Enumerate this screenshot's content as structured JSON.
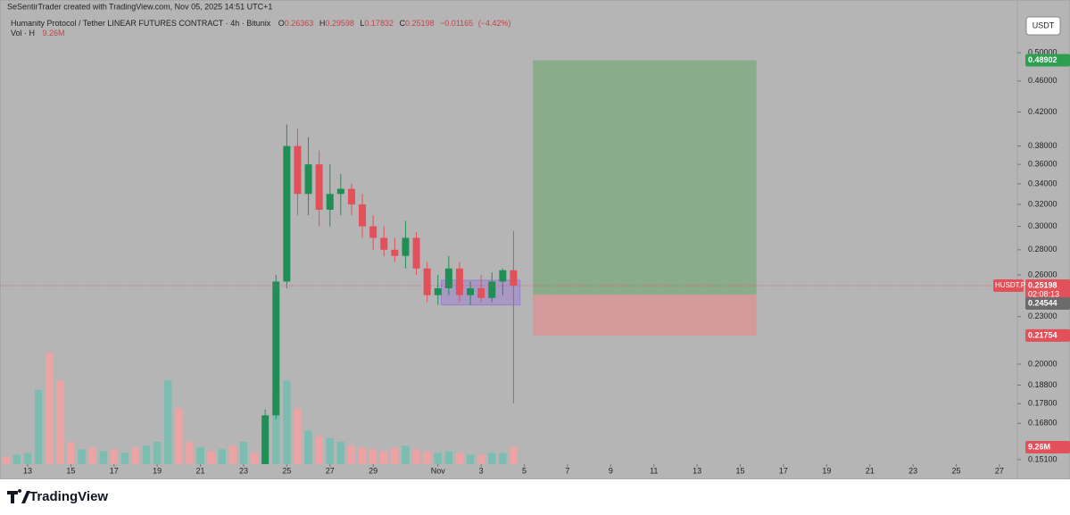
{
  "header": {
    "attribution": "SeSentirTrader created with TradingView.com, Nov 05, 2025 14:51 UTC+1",
    "symbol": "Humanity Protocol / Tether LINEAR FUTURES CONTRACT · 4h · Bitunix",
    "o_label": "O",
    "open": 0.26363,
    "h_label": "H",
    "high": 0.29598,
    "l_label": "L",
    "low": 0.17832,
    "c_label": "C",
    "close": 0.25198,
    "change": "−0.01165",
    "change_pct": "(−4.42%)",
    "vol_label": "Vol · H",
    "vol_value": "9.26M",
    "currency": "USDT",
    "ticker": "HUSDT.P",
    "countdown": "02:08:13"
  },
  "footer": {
    "brand": "TradingView"
  },
  "chart_data": {
    "type": "candlestick",
    "log_scale": true,
    "grid": false,
    "up_color": "#1f8f55",
    "down_color": "#e2505a",
    "x": [
      12,
      12.5,
      13,
      13.5,
      14,
      14.5,
      15,
      15.5,
      16,
      16.5,
      17,
      17.5,
      18,
      18.5,
      19,
      19.5,
      20,
      20.5,
      21,
      21.5,
      22,
      22.5,
      23,
      23.5,
      24,
      24.5,
      25,
      25.5,
      26,
      26.5,
      27,
      27.5,
      28,
      28.5,
      29,
      29.5,
      30,
      30.5,
      31,
      31.5,
      32,
      32.5,
      33,
      33.5,
      34,
      34.5,
      35,
      35.5
    ],
    "open": [
      null,
      null,
      null,
      null,
      null,
      null,
      null,
      null,
      null,
      null,
      null,
      null,
      null,
      null,
      null,
      null,
      null,
      null,
      null,
      null,
      null,
      null,
      null,
      null,
      0.148,
      0.172,
      0.255,
      0.38,
      0.33,
      0.36,
      0.315,
      0.33,
      0.335,
      0.32,
      0.3,
      0.29,
      0.28,
      0.275,
      0.29,
      0.265,
      0.245,
      0.25,
      0.265,
      0.245,
      0.25,
      0.243,
      0.255,
      0.26363
    ],
    "high": [
      null,
      null,
      null,
      null,
      null,
      null,
      null,
      null,
      null,
      null,
      null,
      null,
      null,
      null,
      null,
      null,
      null,
      null,
      null,
      null,
      null,
      null,
      null,
      null,
      0.175,
      0.26,
      0.405,
      0.4,
      0.39,
      0.375,
      0.36,
      0.35,
      0.34,
      0.33,
      0.31,
      0.3,
      0.29,
      0.305,
      0.295,
      0.27,
      0.26,
      0.275,
      0.27,
      0.255,
      0.26,
      0.262,
      0.265,
      0.29598
    ],
    "low": [
      null,
      null,
      null,
      null,
      null,
      null,
      null,
      null,
      null,
      null,
      null,
      null,
      null,
      null,
      null,
      null,
      null,
      null,
      null,
      null,
      null,
      null,
      null,
      null,
      0.146,
      0.17,
      0.25,
      0.31,
      0.31,
      0.3,
      0.3,
      0.31,
      0.31,
      0.29,
      0.28,
      0.275,
      0.27,
      0.265,
      0.26,
      0.24,
      0.238,
      0.245,
      0.24,
      0.238,
      0.24,
      0.24,
      0.245,
      0.17832
    ],
    "close": [
      null,
      null,
      null,
      null,
      null,
      null,
      null,
      null,
      null,
      null,
      null,
      null,
      null,
      null,
      null,
      null,
      null,
      null,
      null,
      null,
      null,
      null,
      null,
      null,
      0.172,
      0.255,
      0.38,
      0.33,
      0.36,
      0.315,
      0.33,
      0.335,
      0.32,
      0.3,
      0.29,
      0.28,
      0.275,
      0.29,
      0.265,
      0.245,
      0.25,
      0.265,
      0.245,
      0.25,
      0.243,
      0.255,
      0.26363,
      0.25198
    ],
    "volume": [
      4000000,
      5000000,
      6000000,
      40000000,
      60000000,
      45000000,
      12000000,
      8000000,
      9000000,
      7000000,
      8000000,
      6000000,
      9000000,
      10000000,
      12000000,
      45000000,
      30000000,
      12000000,
      9000000,
      7000000,
      8000000,
      10000000,
      12000000,
      6000000,
      20000000,
      40000000,
      45000000,
      30000000,
      18000000,
      15000000,
      14000000,
      12000000,
      10000000,
      9000000,
      8000000,
      7000000,
      9000000,
      10000000,
      8000000,
      7000000,
      6000000,
      7000000,
      6000000,
      5000000,
      5000000,
      6000000,
      6000000,
      9260000
    ],
    "volume_colors": [
      "#eca3a3",
      "#7cbdb1",
      "#7cbdb1",
      "#7cbdb1",
      "#eca3a3",
      "#eca3a3",
      "#eca3a3",
      "#7cbdb1",
      "#eca3a3",
      "#7cbdb1",
      "#eca3a3",
      "#7cbdb1",
      "#eca3a3",
      "#7cbdb1",
      "#7cbdb1",
      "#7cbdb1",
      "#eca3a3",
      "#eca3a3",
      "#7cbdb1",
      "#eca3a3",
      "#7cbdb1",
      "#eca3a3",
      "#7cbdb1",
      "#eca3a3",
      "#7cbdb1",
      "#7cbdb1",
      "#7cbdb1",
      "#eca3a3",
      "#7cbdb1",
      "#eca3a3",
      "#7cbdb1",
      "#7cbdb1",
      "#eca3a3",
      "#eca3a3",
      "#eca3a3",
      "#eca3a3",
      "#eca3a3",
      "#7cbdb1",
      "#eca3a3",
      "#eca3a3",
      "#7cbdb1",
      "#7cbdb1",
      "#eca3a3",
      "#7cbdb1",
      "#eca3a3",
      "#7cbdb1",
      "#7cbdb1",
      "#eca3a3"
    ],
    "xlim": [
      11.72,
      58.83
    ],
    "ylim": [
      0.149,
      0.557
    ],
    "xticks": [
      13,
      15,
      17,
      19,
      21,
      23,
      25,
      27,
      29,
      {
        "value": 32,
        "label": "Nov"
      },
      {
        "value": 34,
        "label": "3"
      },
      {
        "value": 36,
        "label": "5"
      },
      {
        "value": 38,
        "label": "7"
      },
      {
        "value": 40,
        "label": "9"
      },
      {
        "value": 42,
        "label": "11"
      },
      {
        "value": 44,
        "label": "13"
      },
      {
        "value": 46,
        "label": "15"
      },
      {
        "value": 48,
        "label": "17"
      },
      {
        "value": 50,
        "label": "19"
      },
      {
        "value": 52,
        "label": "21"
      },
      {
        "value": 54,
        "label": "23"
      },
      {
        "value": 56,
        "label": "25"
      },
      {
        "value": 58,
        "label": "27"
      }
    ],
    "yticks": [
      {
        "value": 0.5,
        "label": "0.50000"
      },
      {
        "value": 0.46,
        "label": "0.46000"
      },
      {
        "value": 0.42,
        "label": "0.42000"
      },
      {
        "value": 0.38,
        "label": "0.38000"
      },
      {
        "value": 0.36,
        "label": "0.36000"
      },
      {
        "value": 0.34,
        "label": "0.34000"
      },
      {
        "value": 0.32,
        "label": "0.32000"
      },
      {
        "value": 0.3,
        "label": "0.30000"
      },
      {
        "value": 0.28,
        "label": "0.28000"
      },
      {
        "value": 0.26,
        "label": "0.26000"
      },
      {
        "value": 0.23,
        "label": "0.23000"
      },
      {
        "value": 0.2,
        "label": "0.20000"
      },
      {
        "value": 0.188,
        "label": "0.18800"
      },
      {
        "value": 0.178,
        "label": "0.17800"
      },
      {
        "value": 0.168,
        "label": "0.16800"
      },
      {
        "value": 0.151,
        "label": "0.15100"
      }
    ],
    "range_box": {
      "x_start": 32.15,
      "x_end": 35.8,
      "top": 0.256,
      "bottom": 0.238,
      "color": "#9a7fd0"
    },
    "position": {
      "x_start": 36.4,
      "x_end": 46.75,
      "entry": 0.24544,
      "target": 0.48902,
      "stop": 0.21754,
      "profit_color": "#8bac8a",
      "loss_color": "#d49a9b"
    }
  }
}
